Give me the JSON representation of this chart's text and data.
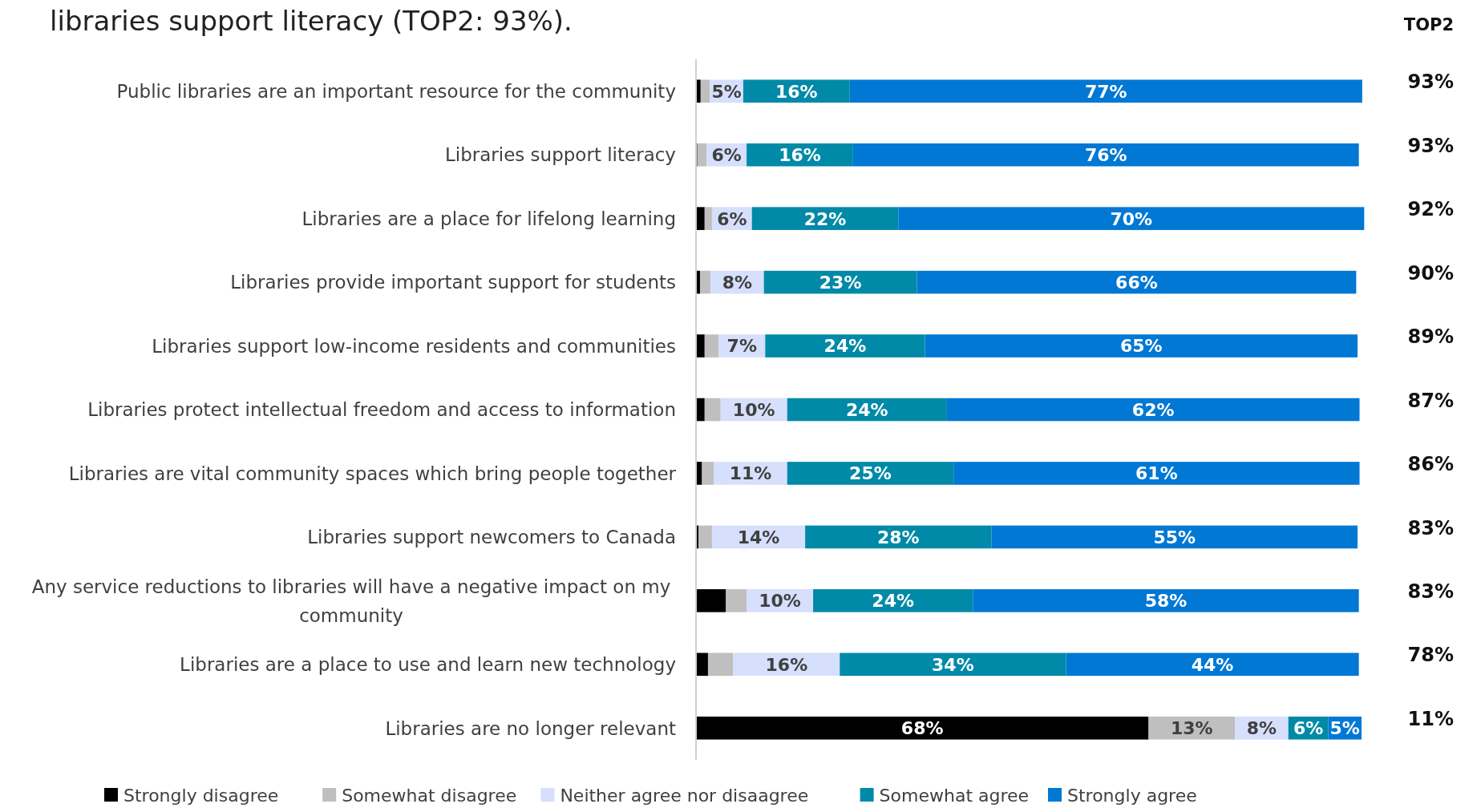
{
  "chart_data": {
    "type": "bar",
    "orientation": "horizontal",
    "stacked": true,
    "title": "libraries support literacy (TOP2: 93%).",
    "categories": [
      "Public libraries are an important resource for the community",
      "Libraries support literacy",
      "Libraries are a place for lifelong learning",
      "Libraries provide important support for students",
      "Libraries support low-income residents and communities",
      "Libraries protect intellectual freedom and access to information",
      "Libraries are vital community spaces which bring people together",
      "Libraries support newcomers to Canada",
      "Any service reductions to libraries will have a negative impact on my community",
      "Libraries are a place to use and learn new technology",
      "Libraries are no longer relevant"
    ],
    "xlim": [
      0,
      100
    ],
    "series": [
      {
        "name": "Strongly disagree",
        "color": "#000000",
        "values": [
          0.7,
          0.2,
          1.3,
          0.6,
          1.3,
          1.3,
          0.9,
          0.4,
          4.5,
          1.8,
          68
        ],
        "value_labels": [
          null,
          null,
          null,
          null,
          null,
          null,
          null,
          null,
          null,
          null,
          "68%"
        ]
      },
      {
        "name": "Somewhat disagree",
        "color": "#bfbfbf",
        "values": [
          1.4,
          1.4,
          1.1,
          1.6,
          2.1,
          2.4,
          1.8,
          2.0,
          3.1,
          3.8,
          13
        ],
        "value_labels": [
          null,
          null,
          null,
          null,
          null,
          null,
          null,
          null,
          null,
          null,
          "13%"
        ]
      },
      {
        "name": "Neither agree nor disaagree",
        "color": "#d6dffc",
        "values": [
          5,
          6,
          6,
          8,
          7,
          10,
          11,
          14,
          10,
          16,
          8
        ],
        "value_labels": [
          "5%",
          "6%",
          "6%",
          "8%",
          "7%",
          "10%",
          "11%",
          "14%",
          "10%",
          "16%",
          "8%"
        ]
      },
      {
        "name": "Somewhat agree",
        "color": "#008aa8",
        "values": [
          16,
          16,
          22,
          23,
          24,
          24,
          25,
          28,
          24,
          34,
          6
        ],
        "value_labels": [
          "16%",
          "16%",
          "22%",
          "23%",
          "24%",
          "24%",
          "25%",
          "28%",
          "24%",
          "34%",
          "6%"
        ]
      },
      {
        "name": "Strongly agree",
        "color": "#0078d4",
        "values": [
          77,
          76,
          70,
          66,
          65,
          62,
          61,
          55,
          58,
          44,
          5
        ],
        "value_labels": [
          "77%",
          "76%",
          "70%",
          "66%",
          "65%",
          "62%",
          "61%",
          "55%",
          "58%",
          "44%",
          "5%"
        ]
      }
    ],
    "annotations": [
      "TOP2",
      "93%",
      "93%",
      "92%",
      "90%",
      "89%",
      "87%",
      "86%",
      "83%",
      "83%",
      "78%",
      "11%"
    ],
    "legend": "bottom",
    "grid": false
  }
}
